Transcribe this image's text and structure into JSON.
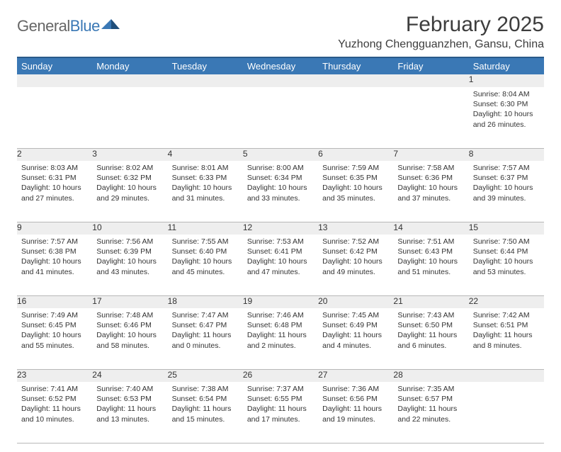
{
  "brand": {
    "text_gray": "General",
    "text_blue": "Blue"
  },
  "title": "February 2025",
  "location": "Yuzhong Chengguanzhen, Gansu, China",
  "colors": {
    "header_bg": "#3a78b5",
    "header_border": "#2a5a8a",
    "daynum_bg": "#eeeeee",
    "row_border": "#b8b8b8",
    "text": "#333333",
    "title_text": "#3d3d3d",
    "logo_gray": "#666666",
    "logo_blue": "#3a78b5",
    "page_bg": "#ffffff"
  },
  "weekdays": [
    "Sunday",
    "Monday",
    "Tuesday",
    "Wednesday",
    "Thursday",
    "Friday",
    "Saturday"
  ],
  "weeks": [
    [
      null,
      null,
      null,
      null,
      null,
      null,
      {
        "n": "1",
        "sr": "8:04 AM",
        "ss": "6:30 PM",
        "dl": "10 hours and 26 minutes."
      }
    ],
    [
      {
        "n": "2",
        "sr": "8:03 AM",
        "ss": "6:31 PM",
        "dl": "10 hours and 27 minutes."
      },
      {
        "n": "3",
        "sr": "8:02 AM",
        "ss": "6:32 PM",
        "dl": "10 hours and 29 minutes."
      },
      {
        "n": "4",
        "sr": "8:01 AM",
        "ss": "6:33 PM",
        "dl": "10 hours and 31 minutes."
      },
      {
        "n": "5",
        "sr": "8:00 AM",
        "ss": "6:34 PM",
        "dl": "10 hours and 33 minutes."
      },
      {
        "n": "6",
        "sr": "7:59 AM",
        "ss": "6:35 PM",
        "dl": "10 hours and 35 minutes."
      },
      {
        "n": "7",
        "sr": "7:58 AM",
        "ss": "6:36 PM",
        "dl": "10 hours and 37 minutes."
      },
      {
        "n": "8",
        "sr": "7:57 AM",
        "ss": "6:37 PM",
        "dl": "10 hours and 39 minutes."
      }
    ],
    [
      {
        "n": "9",
        "sr": "7:57 AM",
        "ss": "6:38 PM",
        "dl": "10 hours and 41 minutes."
      },
      {
        "n": "10",
        "sr": "7:56 AM",
        "ss": "6:39 PM",
        "dl": "10 hours and 43 minutes."
      },
      {
        "n": "11",
        "sr": "7:55 AM",
        "ss": "6:40 PM",
        "dl": "10 hours and 45 minutes."
      },
      {
        "n": "12",
        "sr": "7:53 AM",
        "ss": "6:41 PM",
        "dl": "10 hours and 47 minutes."
      },
      {
        "n": "13",
        "sr": "7:52 AM",
        "ss": "6:42 PM",
        "dl": "10 hours and 49 minutes."
      },
      {
        "n": "14",
        "sr": "7:51 AM",
        "ss": "6:43 PM",
        "dl": "10 hours and 51 minutes."
      },
      {
        "n": "15",
        "sr": "7:50 AM",
        "ss": "6:44 PM",
        "dl": "10 hours and 53 minutes."
      }
    ],
    [
      {
        "n": "16",
        "sr": "7:49 AM",
        "ss": "6:45 PM",
        "dl": "10 hours and 55 minutes."
      },
      {
        "n": "17",
        "sr": "7:48 AM",
        "ss": "6:46 PM",
        "dl": "10 hours and 58 minutes."
      },
      {
        "n": "18",
        "sr": "7:47 AM",
        "ss": "6:47 PM",
        "dl": "11 hours and 0 minutes."
      },
      {
        "n": "19",
        "sr": "7:46 AM",
        "ss": "6:48 PM",
        "dl": "11 hours and 2 minutes."
      },
      {
        "n": "20",
        "sr": "7:45 AM",
        "ss": "6:49 PM",
        "dl": "11 hours and 4 minutes."
      },
      {
        "n": "21",
        "sr": "7:43 AM",
        "ss": "6:50 PM",
        "dl": "11 hours and 6 minutes."
      },
      {
        "n": "22",
        "sr": "7:42 AM",
        "ss": "6:51 PM",
        "dl": "11 hours and 8 minutes."
      }
    ],
    [
      {
        "n": "23",
        "sr": "7:41 AM",
        "ss": "6:52 PM",
        "dl": "11 hours and 10 minutes."
      },
      {
        "n": "24",
        "sr": "7:40 AM",
        "ss": "6:53 PM",
        "dl": "11 hours and 13 minutes."
      },
      {
        "n": "25",
        "sr": "7:38 AM",
        "ss": "6:54 PM",
        "dl": "11 hours and 15 minutes."
      },
      {
        "n": "26",
        "sr": "7:37 AM",
        "ss": "6:55 PM",
        "dl": "11 hours and 17 minutes."
      },
      {
        "n": "27",
        "sr": "7:36 AM",
        "ss": "6:56 PM",
        "dl": "11 hours and 19 minutes."
      },
      {
        "n": "28",
        "sr": "7:35 AM",
        "ss": "6:57 PM",
        "dl": "11 hours and 22 minutes."
      },
      null
    ]
  ],
  "labels": {
    "sunrise": "Sunrise:",
    "sunset": "Sunset:",
    "daylight": "Daylight:"
  }
}
